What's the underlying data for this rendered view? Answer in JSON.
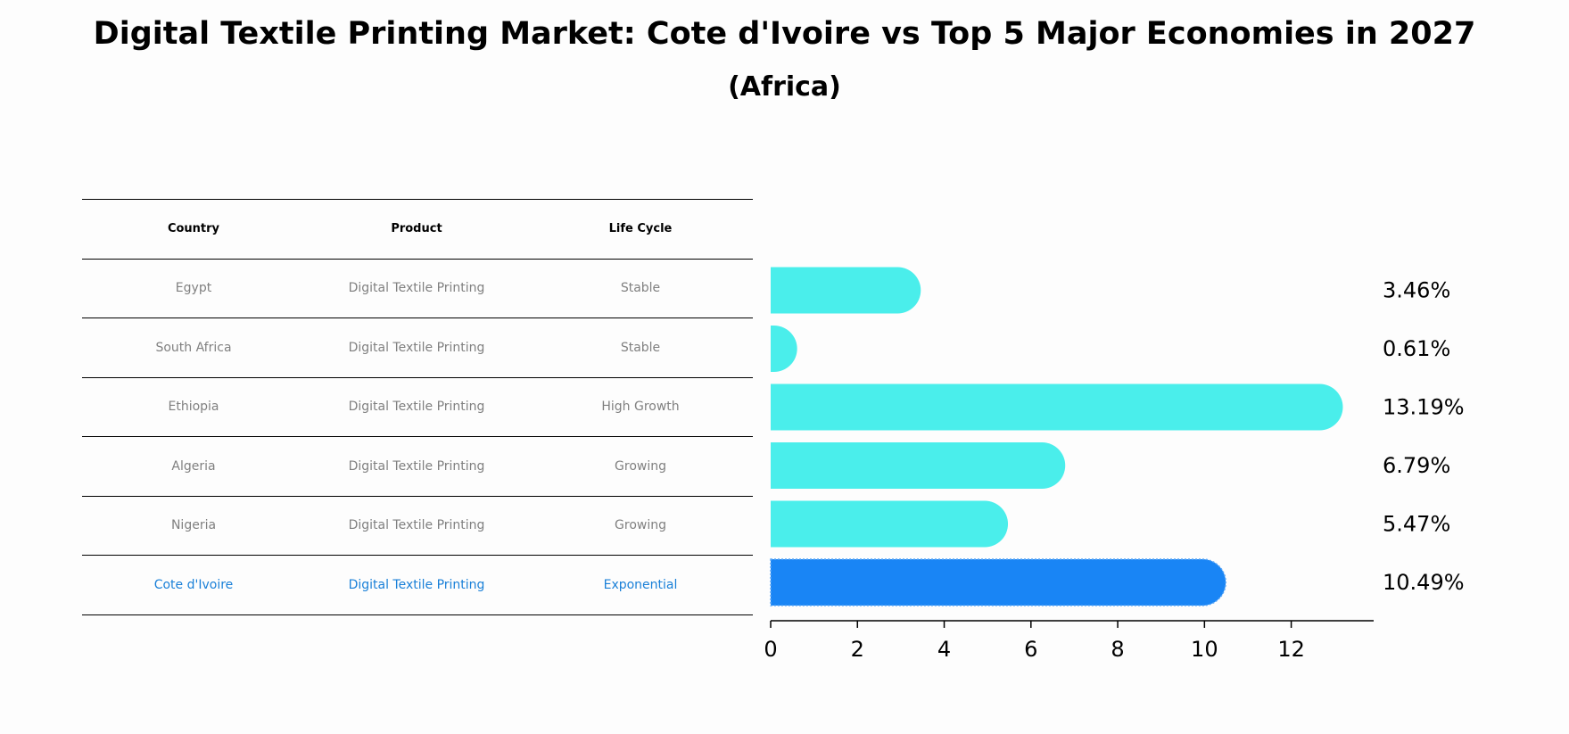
{
  "title": "Digital Textile Printing Market: Cote d'Ivoire vs Top 5 Major Economies in 2027",
  "subtitle": "(Africa)",
  "table": {
    "headers": [
      "Country",
      "Product",
      "Life Cycle"
    ],
    "rows": [
      [
        "Egypt",
        "Digital Textile Printing",
        "Stable"
      ],
      [
        "South Africa",
        "Digital Textile Printing",
        "Stable"
      ],
      [
        "Ethiopia",
        "Digital Textile Printing",
        "High Growth"
      ],
      [
        "Algeria",
        "Digital Textile Printing",
        "Growing"
      ],
      [
        "Nigeria",
        "Digital Textile Printing",
        "Growing"
      ],
      [
        "Cote d'Ivoire",
        "Digital Textile Printing",
        "Exponential"
      ]
    ]
  },
  "chart_data": {
    "type": "bar",
    "orientation": "horizontal",
    "categories": [
      "Egypt",
      "South Africa",
      "Ethiopia",
      "Algeria",
      "Nigeria",
      "Cote d'Ivoire"
    ],
    "values": [
      3.46,
      0.61,
      13.19,
      6.79,
      5.47,
      10.49
    ],
    "data_labels": [
      "3.46%",
      "0.61%",
      "13.19%",
      "6.79%",
      "5.47%",
      "10.49%"
    ],
    "highlight_index": 5,
    "xlim": [
      0,
      13.9
    ],
    "xticks": [
      0,
      2,
      4,
      6,
      8,
      10,
      12
    ],
    "xlabel": "",
    "ylabel": "",
    "grid": false,
    "colors": {
      "default_bar": "#4aeeeb",
      "highlight_bar": "#1985f5",
      "highlight_text": "#1a80d8",
      "cell_text": "#808080",
      "axis": "#000000"
    }
  }
}
